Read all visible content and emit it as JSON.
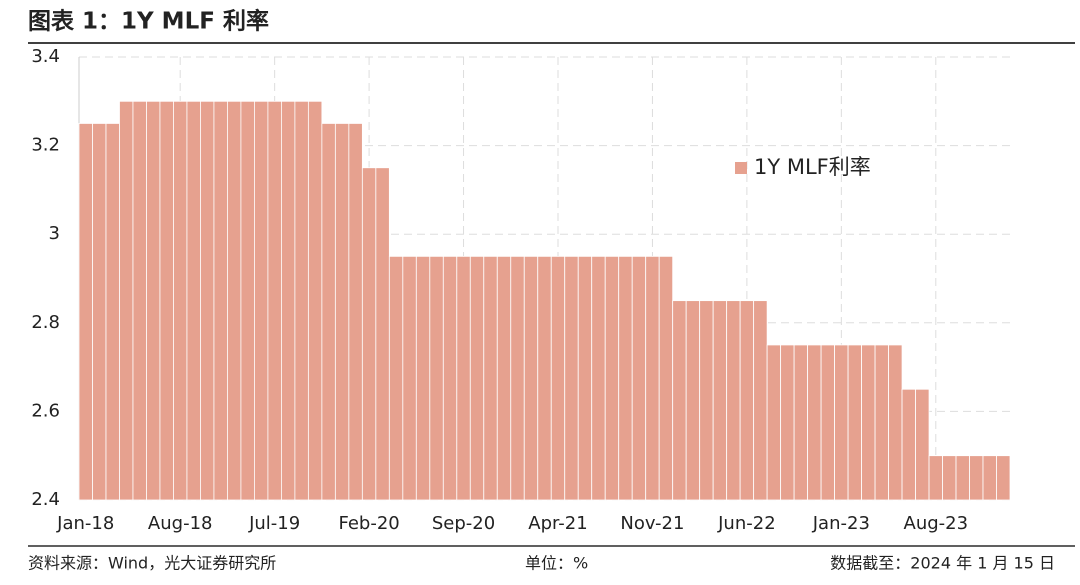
{
  "chart_data": {
    "type": "bar",
    "title": "图表 1：1Y MLF 利率",
    "categories": [
      "Jan-18",
      null,
      null,
      null,
      null,
      null,
      null,
      "Aug-18",
      null,
      null,
      null,
      null,
      null,
      null,
      "Jul-19",
      null,
      null,
      null,
      null,
      null,
      null,
      "Feb-20",
      null,
      null,
      null,
      null,
      null,
      null,
      "Sep-20",
      null,
      null,
      null,
      null,
      null,
      null,
      "Apr-21",
      null,
      null,
      null,
      null,
      null,
      null,
      "Nov-21",
      null,
      null,
      null,
      null,
      null,
      null,
      "Jun-22",
      null,
      null,
      null,
      null,
      null,
      null,
      "Jan-23",
      null,
      null,
      null,
      null,
      null,
      null,
      "Aug-23",
      null,
      null,
      null,
      null,
      null
    ],
    "series": [
      {
        "name": "1Y MLF利率",
        "color": "#e6a18f",
        "values": [
          3.25,
          3.25,
          3.25,
          3.3,
          3.3,
          3.3,
          3.3,
          3.3,
          3.3,
          3.3,
          3.3,
          3.3,
          3.3,
          3.3,
          3.3,
          3.3,
          3.3,
          3.3,
          3.25,
          3.25,
          3.25,
          3.15,
          3.15,
          2.95,
          2.95,
          2.95,
          2.95,
          2.95,
          2.95,
          2.95,
          2.95,
          2.95,
          2.95,
          2.95,
          2.95,
          2.95,
          2.95,
          2.95,
          2.95,
          2.95,
          2.95,
          2.95,
          2.95,
          2.95,
          2.85,
          2.85,
          2.85,
          2.85,
          2.85,
          2.85,
          2.85,
          2.75,
          2.75,
          2.75,
          2.75,
          2.75,
          2.75,
          2.75,
          2.75,
          2.75,
          2.75,
          2.65,
          2.65,
          2.5,
          2.5,
          2.5,
          2.5,
          2.5,
          2.5
        ]
      }
    ],
    "ylim": [
      2.4,
      3.4
    ],
    "yticks": [
      2.4,
      2.6,
      2.8,
      3,
      3.2,
      3.4
    ],
    "grid": true,
    "footer": {
      "source": "资料来源：Wind，光大证券研究所",
      "unit": "单位：%",
      "date": "数据截至：2024 年 1 月 15 日"
    }
  }
}
